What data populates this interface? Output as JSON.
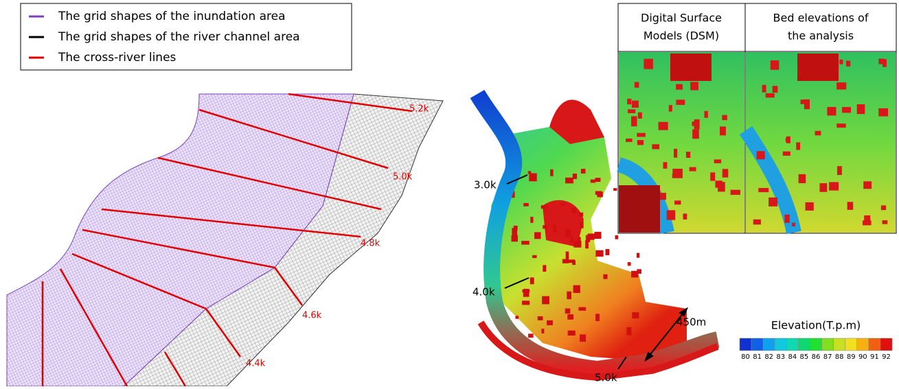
{
  "legend": {
    "items": [
      {
        "label": "The grid shapes of the inundation area",
        "color": "#7b3fbf"
      },
      {
        "label": "The grid shapes of the river channel area",
        "color": "#000000"
      },
      {
        "label": "The cross-river lines",
        "color": "#e00000"
      }
    ]
  },
  "mesh_labels": [
    "5.2k",
    "5.0k",
    "4.8k",
    "4.6k",
    "4.4k"
  ],
  "map_labels": {
    "sections": [
      "3.0k",
      "4.0k",
      "5.0k"
    ],
    "width": "450m"
  },
  "insets": [
    {
      "title_lines": [
        "Digital Surface",
        "Models (DSM)"
      ]
    },
    {
      "title_lines": [
        "Bed elevations of",
        "the analysis"
      ]
    }
  ],
  "colorbar": {
    "title": "Elevation(T.p.m)",
    "ticks": [
      80,
      81,
      82,
      83,
      84,
      85,
      86,
      87,
      88,
      89,
      90,
      91,
      92
    ],
    "colors": [
      "#1030d0",
      "#1060e8",
      "#10a0f0",
      "#10c8e0",
      "#10d8b0",
      "#10d870",
      "#20e030",
      "#80e020",
      "#c8e020",
      "#f0e020",
      "#f8b010",
      "#f06010",
      "#e01010"
    ]
  }
}
